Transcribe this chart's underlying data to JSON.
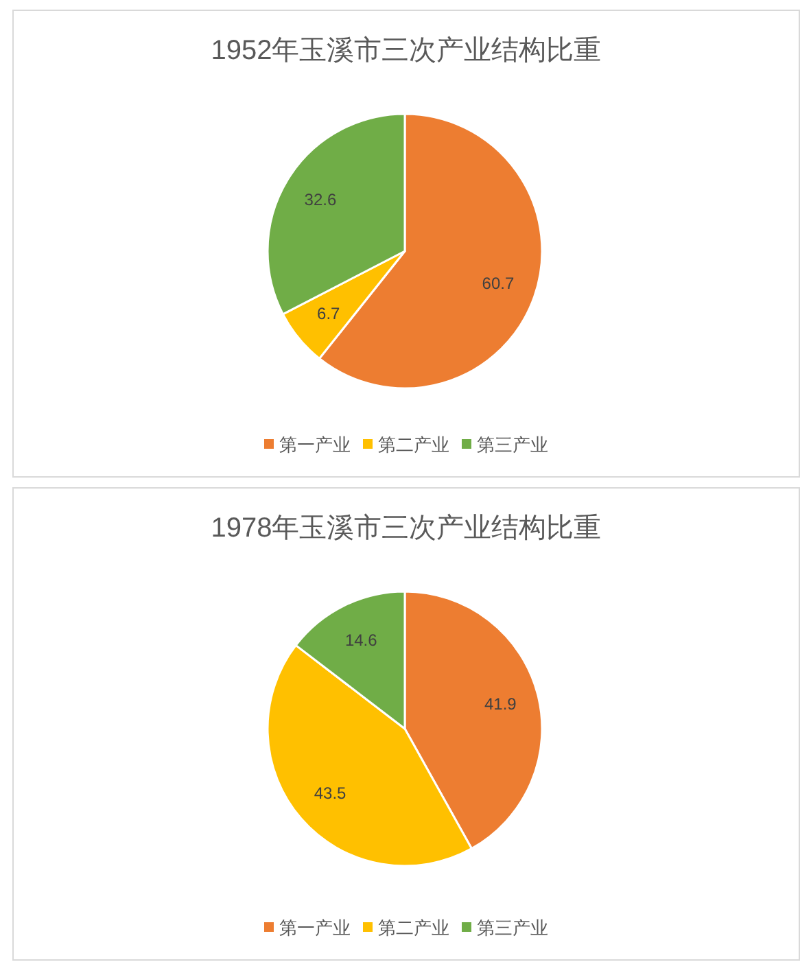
{
  "chart_data": [
    {
      "type": "pie",
      "title": "1952年玉溪市三次产业结构比重",
      "categories": [
        "第一产业",
        "第二产业",
        "第三产业"
      ],
      "values": [
        60.7,
        6.7,
        32.6
      ],
      "colors": [
        "#ed7d31",
        "#ffc000",
        "#70ad47"
      ],
      "data_labels": true,
      "legend": "bottom"
    },
    {
      "type": "pie",
      "title": "1978年玉溪市三次产业结构比重",
      "categories": [
        "第一产业",
        "第二产业",
        "第三产业"
      ],
      "values": [
        41.9,
        43.5,
        14.6
      ],
      "colors": [
        "#ed7d31",
        "#ffc000",
        "#70ad47"
      ],
      "data_labels": true,
      "legend": "bottom"
    }
  ]
}
